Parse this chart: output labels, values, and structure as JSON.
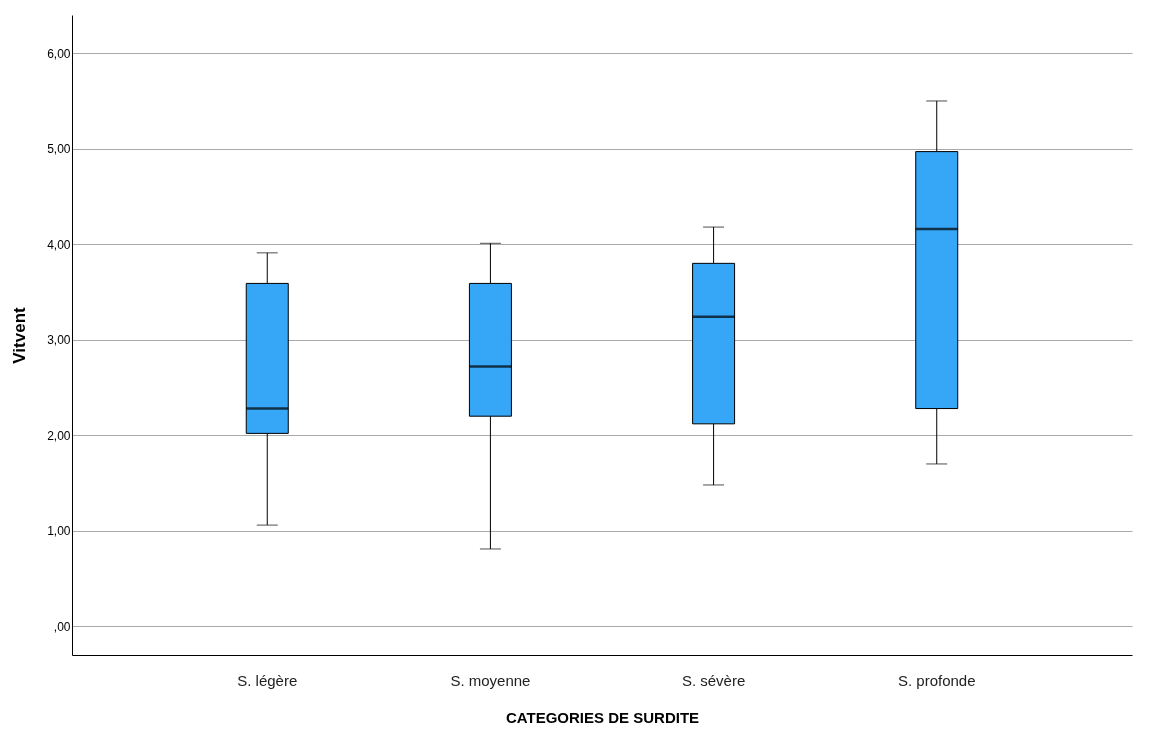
{
  "chart_data": {
    "type": "box",
    "xlabel": "CATEGORIES DE SURDITE",
    "ylabel": "Vitvent",
    "categories": [
      "S. légère",
      "S. moyenne",
      "S. sévère",
      "S. profonde"
    ],
    "boxes": [
      {
        "low": 1.06,
        "q1": 2.02,
        "median": 2.28,
        "q3": 3.59,
        "high": 3.91
      },
      {
        "low": 0.81,
        "q1": 2.2,
        "median": 2.72,
        "q3": 3.59,
        "high": 4.01
      },
      {
        "low": 1.48,
        "q1": 2.12,
        "median": 3.24,
        "q3": 3.8,
        "high": 4.18
      },
      {
        "low": 1.7,
        "q1": 2.28,
        "median": 4.16,
        "q3": 4.97,
        "high": 5.5
      }
    ],
    "color": "#36a6f7",
    "ylim": [
      -0.3,
      6.4
    ],
    "yticks": [
      {
        "value": 0,
        "label": ",00"
      },
      {
        "value": 1,
        "label": "1,00"
      },
      {
        "value": 2,
        "label": "2,00"
      },
      {
        "value": 3,
        "label": "3,00"
      },
      {
        "value": 4,
        "label": "4,00"
      },
      {
        "value": 5,
        "label": "5,00"
      },
      {
        "value": 6,
        "label": "6,00"
      }
    ],
    "grid": "y"
  }
}
